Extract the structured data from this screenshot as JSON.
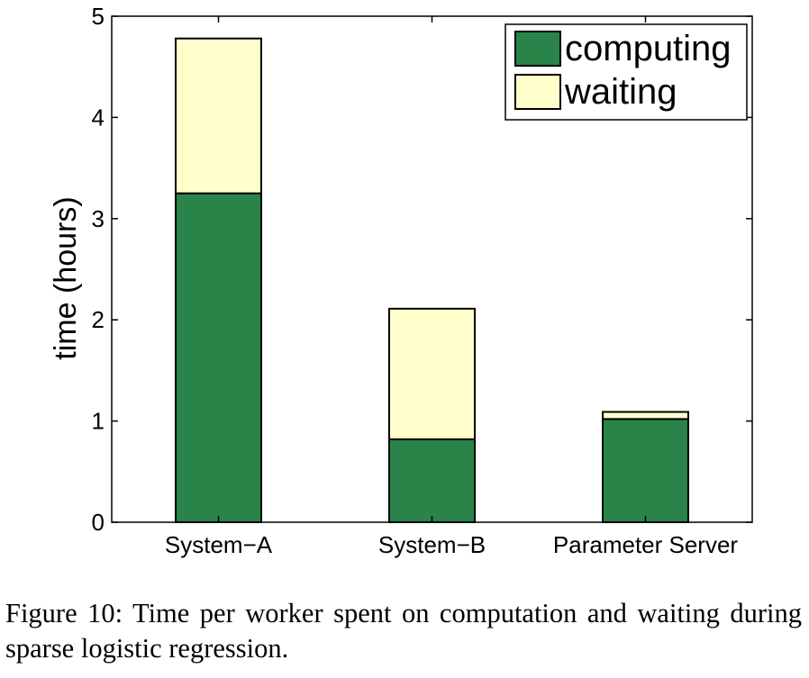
{
  "chart_data": {
    "type": "bar",
    "stacked": true,
    "categories": [
      "System−A",
      "System−B",
      "Parameter Server"
    ],
    "series": [
      {
        "name": "computing",
        "values": [
          3.25,
          0.82,
          1.02
        ],
        "color": "#2a8449"
      },
      {
        "name": "waiting",
        "values": [
          1.53,
          1.29,
          0.07
        ],
        "color": "#ffffcc"
      }
    ],
    "ylabel": "time (hours)",
    "xlabel": "",
    "ylim": [
      0,
      5
    ],
    "yticks": [
      "0",
      "1",
      "2",
      "3",
      "4",
      "5"
    ],
    "grid": false,
    "legend_position": "top-right"
  },
  "caption": "Figure 10:  Time per worker spent on computation and waiting during sparse logistic regression."
}
